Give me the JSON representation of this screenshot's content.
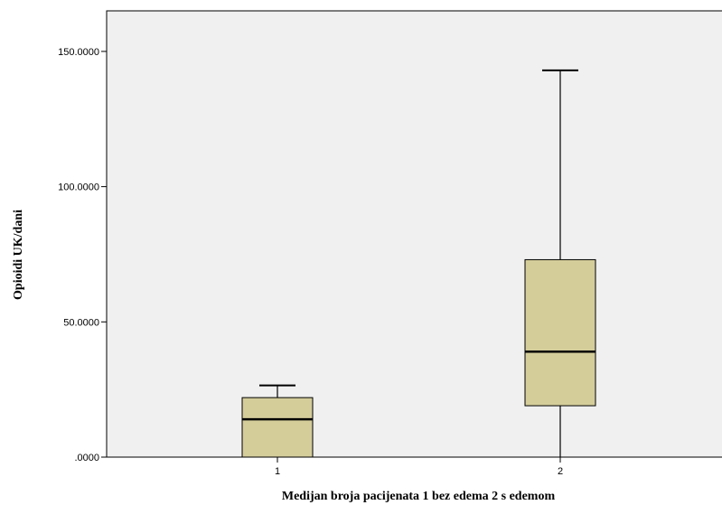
{
  "chart_data": {
    "type": "boxplot",
    "title": "",
    "xlabel": "Medijan broja pacijenata 1 bez edema 2 s edemom",
    "ylabel": "Opioidi UK/dani",
    "ylim": [
      0,
      165
    ],
    "yticks": [
      0,
      50,
      100,
      150
    ],
    "ytick_labels": [
      ".0000",
      "50.0000",
      "100.0000",
      "150.0000"
    ],
    "categories": [
      "1",
      "2"
    ],
    "box_color": "#d4cd9a",
    "plot_background": "#f0f0f0",
    "boxes": [
      {
        "category": "1",
        "min": 0,
        "q1": 0,
        "median": 14,
        "q3": 22,
        "max": 26.5
      },
      {
        "category": "2",
        "min": 0,
        "q1": 19,
        "median": 39,
        "q3": 73,
        "max": 143
      }
    ],
    "grid": false,
    "legend": "none"
  }
}
